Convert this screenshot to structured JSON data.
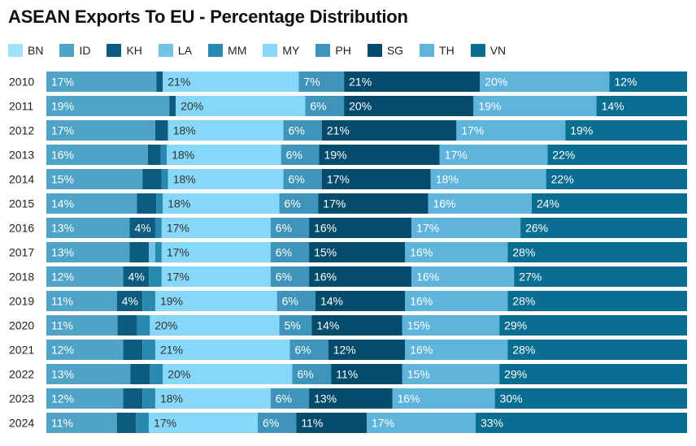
{
  "chart_data": {
    "type": "bar",
    "orientation": "horizontal",
    "stacked": true,
    "percent": true,
    "title": "ASEAN Exports To EU - Percentage Distribution",
    "xlabel": "",
    "ylabel": "",
    "xlim": [
      0,
      100
    ],
    "grid": false,
    "legend_position": "top-left",
    "categories": [
      "2010",
      "2011",
      "2012",
      "2013",
      "2014",
      "2015",
      "2016",
      "2017",
      "2018",
      "2019",
      "2020",
      "2021",
      "2022",
      "2023",
      "2024"
    ],
    "series": [
      {
        "name": "BN",
        "color": "#9ee3f9",
        "values": [
          0,
          0,
          0,
          0,
          0,
          0,
          0,
          0,
          0,
          0,
          0,
          0,
          0,
          0,
          0
        ]
      },
      {
        "name": "ID",
        "color": "#4fa3c6",
        "values": [
          17,
          19,
          17,
          16,
          15,
          14,
          13,
          13,
          12,
          11,
          11,
          12,
          13,
          12,
          11
        ]
      },
      {
        "name": "KH",
        "color": "#0d5b7e",
        "values": [
          1,
          1,
          2,
          2,
          3,
          3,
          4,
          3,
          4,
          4,
          3,
          3,
          3,
          3,
          3
        ]
      },
      {
        "name": "LA",
        "color": "#71c2e4",
        "values": [
          0,
          0,
          0,
          0,
          0,
          0,
          0,
          1,
          0,
          0,
          0,
          0,
          0,
          0,
          0
        ]
      },
      {
        "name": "MM",
        "color": "#2989ae",
        "values": [
          0,
          0,
          0,
          1,
          1,
          1,
          1,
          1,
          2,
          2,
          2,
          2,
          2,
          2,
          2
        ]
      },
      {
        "name": "MY",
        "color": "#86d7f8",
        "values": [
          21,
          20,
          18,
          18,
          18,
          18,
          17,
          17,
          17,
          19,
          20,
          21,
          20,
          18,
          17
        ]
      },
      {
        "name": "PH",
        "color": "#3e94bb",
        "values": [
          7,
          6,
          6,
          6,
          6,
          6,
          6,
          6,
          6,
          6,
          5,
          6,
          6,
          6,
          6
        ]
      },
      {
        "name": "SG",
        "color": "#044b6c",
        "values": [
          21,
          20,
          21,
          19,
          17,
          17,
          16,
          15,
          16,
          14,
          14,
          12,
          11,
          13,
          11
        ]
      },
      {
        "name": "TH",
        "color": "#5fb4dc",
        "values": [
          20,
          19,
          17,
          17,
          18,
          16,
          17,
          16,
          16,
          16,
          15,
          16,
          15,
          16,
          17
        ]
      },
      {
        "name": "VN",
        "color": "#0a6e93",
        "values": [
          12,
          14,
          19,
          22,
          22,
          24,
          26,
          28,
          27,
          28,
          29,
          28,
          29,
          30,
          33
        ]
      }
    ]
  }
}
